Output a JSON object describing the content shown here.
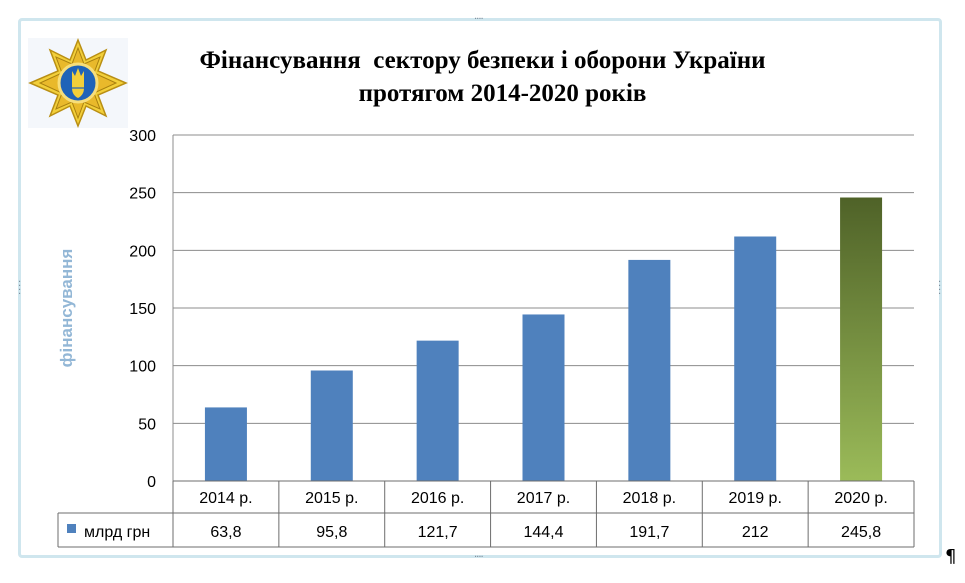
{
  "chart_data": {
    "type": "bar",
    "title_line1": "Фінансування  сектору безпеки і оборони України",
    "title_line2": "протягом 2014-2020 років",
    "ylabel": "фінансування",
    "ylim": [
      0,
      300
    ],
    "yticks": [
      "0",
      "50",
      "100",
      "150",
      "200",
      "250",
      "300"
    ],
    "categories": [
      "2014 р.",
      "2015 р.",
      "2016 р.",
      "2017 р.",
      "2018 р.",
      "2019 р.",
      "2020 р."
    ],
    "series": [
      {
        "name": "млрд грн",
        "values": [
          63.8,
          95.8,
          121.7,
          144.4,
          191.7,
          212,
          245.8
        ],
        "value_labels": [
          "63,8",
          "95,8",
          "121,7",
          "144,4",
          "191,7",
          "212",
          "245,8"
        ],
        "color": "#4f81bd",
        "highlight_color_top": "#4f6228",
        "highlight_color_bottom": "#9bbb59"
      }
    ],
    "grid": true,
    "legend": "data-table",
    "data_table": true
  },
  "emblem_icon": "rnbo-emblem-icon",
  "pilcrow": "¶"
}
